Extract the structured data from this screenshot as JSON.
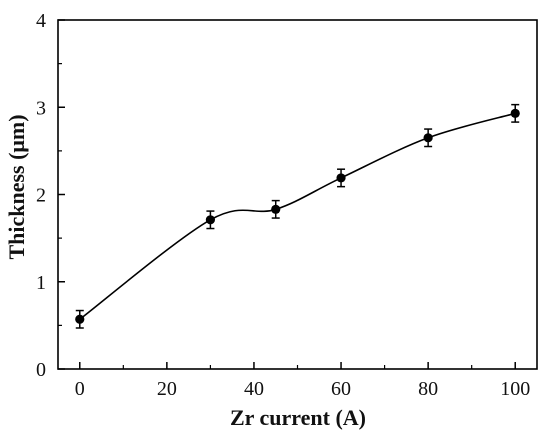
{
  "chart_data": {
    "type": "line",
    "title": "",
    "xlabel": "Zr current (A)",
    "ylabel": "Thickness (μm)",
    "xlim": [
      -5,
      105
    ],
    "ylim": [
      0,
      4
    ],
    "x_ticks": [
      0,
      20,
      40,
      60,
      80,
      100
    ],
    "y_ticks": [
      0,
      1,
      2,
      3,
      4
    ],
    "x_tick_labels": [
      "0",
      "20",
      "40",
      "60",
      "80",
      "100"
    ],
    "y_tick_labels": [
      "0",
      "1",
      "2",
      "3",
      "4"
    ],
    "grid": false,
    "legend": "none",
    "series": [
      {
        "x": [
          0,
          30,
          45,
          60,
          80,
          100
        ],
        "y": [
          0.57,
          1.71,
          1.83,
          2.19,
          2.65,
          2.93
        ],
        "yerr": [
          0.1,
          0.1,
          0.1,
          0.1,
          0.1,
          0.1
        ],
        "color": "#000000",
        "marker": "circle",
        "line": "smooth"
      }
    ]
  }
}
